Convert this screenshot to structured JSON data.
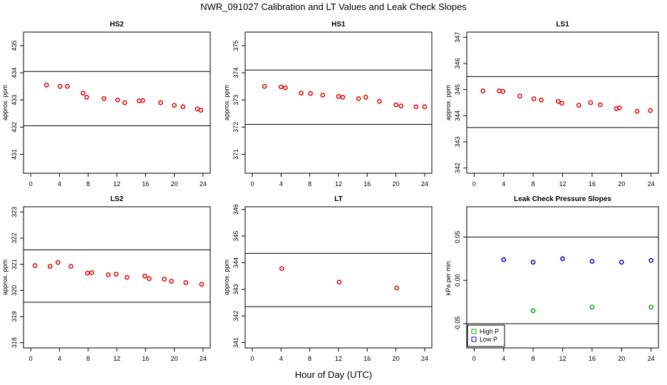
{
  "figure": {
    "title": "NWR_091027  Calibration and LT Values and Leak Check Slopes",
    "xlabel": "Hour of Day (UTC)"
  },
  "colors": {
    "red": "#e00000",
    "green": "#00b000",
    "blue": "#0000cc",
    "axis": "#000000"
  },
  "chart_data": [
    {
      "type": "scatter",
      "title": "HS2",
      "ylabel": "approx. ppm",
      "xlim": [
        -1,
        25
      ],
      "ylim": [
        430.3,
        435.5
      ],
      "xticks": [
        0,
        4,
        8,
        12,
        16,
        20,
        24
      ],
      "yticks": [
        431,
        432,
        433,
        434,
        435
      ],
      "hlines": [
        434.05,
        432.05
      ],
      "series": [
        {
          "marker": "circle",
          "color": "red",
          "points": [
            [
              2.2,
              433.55
            ],
            [
              4.1,
              433.5
            ],
            [
              5.1,
              433.5
            ],
            [
              7.3,
              433.25
            ],
            [
              7.8,
              433.1
            ],
            [
              10.2,
              433.05
            ],
            [
              12.1,
              433.0
            ],
            [
              13.1,
              432.9
            ],
            [
              15.1,
              432.97
            ],
            [
              15.6,
              432.98
            ],
            [
              18.1,
              432.9
            ],
            [
              20,
              432.8
            ],
            [
              21.2,
              432.75
            ],
            [
              23.2,
              432.67
            ],
            [
              23.7,
              432.62
            ]
          ]
        }
      ]
    },
    {
      "type": "scatter",
      "title": "HS1",
      "ylabel": "approx. ppm",
      "xlim": [
        -1,
        25
      ],
      "ylim": [
        370.3,
        375.5
      ],
      "xticks": [
        0,
        4,
        8,
        12,
        16,
        20,
        24
      ],
      "yticks": [
        371,
        372,
        373,
        374,
        375
      ],
      "hlines": [
        374.1,
        372.1
      ],
      "series": [
        {
          "marker": "circle",
          "color": "red",
          "points": [
            [
              1.7,
              373.5
            ],
            [
              4,
              373.48
            ],
            [
              4.6,
              373.45
            ],
            [
              6.8,
              373.25
            ],
            [
              8.1,
              373.24
            ],
            [
              9.8,
              373.18
            ],
            [
              12,
              373.13
            ],
            [
              12.6,
              373.1
            ],
            [
              14.8,
              373.05
            ],
            [
              15.8,
              373.1
            ],
            [
              17.7,
              372.95
            ],
            [
              20,
              372.82
            ],
            [
              20.7,
              372.78
            ],
            [
              22.8,
              372.75
            ],
            [
              24,
              372.75
            ]
          ]
        }
      ]
    },
    {
      "type": "scatter",
      "title": "LS1",
      "ylabel": "approx. ppm",
      "xlim": [
        -1,
        25
      ],
      "ylim": [
        341.8,
        347.2
      ],
      "xticks": [
        0,
        4,
        8,
        12,
        16,
        20,
        24
      ],
      "yticks": [
        342,
        343,
        344,
        345,
        346,
        347
      ],
      "hlines": [
        345.5,
        343.55
      ],
      "series": [
        {
          "marker": "circle",
          "color": "red",
          "points": [
            [
              1.2,
              344.95
            ],
            [
              3.4,
              344.95
            ],
            [
              3.9,
              344.93
            ],
            [
              6.2,
              344.75
            ],
            [
              8.1,
              344.65
            ],
            [
              9.1,
              344.6
            ],
            [
              11.4,
              344.55
            ],
            [
              11.9,
              344.48
            ],
            [
              14.2,
              344.4
            ],
            [
              15.8,
              344.5
            ],
            [
              17.1,
              344.42
            ],
            [
              19.3,
              344.27
            ],
            [
              19.7,
              344.3
            ],
            [
              22.1,
              344.17
            ],
            [
              23.9,
              344.2
            ]
          ]
        }
      ]
    },
    {
      "type": "scatter",
      "title": "LS2",
      "ylabel": "approx. ppm",
      "xlim": [
        -1,
        25
      ],
      "ylim": [
        317.8,
        323.2
      ],
      "xticks": [
        0,
        4,
        8,
        12,
        16,
        20,
        24
      ],
      "yticks": [
        318,
        319,
        320,
        321,
        322,
        323
      ],
      "hlines": [
        321.55,
        319.55
      ],
      "series": [
        {
          "marker": "circle",
          "color": "red",
          "points": [
            [
              0.6,
              320.95
            ],
            [
              2.7,
              320.92
            ],
            [
              3.8,
              321.07
            ],
            [
              5.6,
              320.92
            ],
            [
              7.9,
              320.66
            ],
            [
              8.5,
              320.68
            ],
            [
              10.8,
              320.6
            ],
            [
              11.9,
              320.62
            ],
            [
              13.4,
              320.5
            ],
            [
              15.9,
              320.55
            ],
            [
              16.5,
              320.45
            ],
            [
              18.6,
              320.43
            ],
            [
              19.6,
              320.35
            ],
            [
              21.6,
              320.3
            ],
            [
              23.8,
              320.23
            ]
          ]
        }
      ]
    },
    {
      "type": "scatter",
      "title": "LT",
      "ylabel": "approx. ppm",
      "xlim": [
        -1,
        25
      ],
      "ylim": [
        340.8,
        346.1
      ],
      "xticks": [
        0,
        4,
        8,
        12,
        16,
        20,
        24
      ],
      "yticks": [
        341,
        342,
        343,
        344,
        345,
        346
      ],
      "hlines": [
        344.35,
        342.35
      ],
      "series": [
        {
          "marker": "circle",
          "color": "red",
          "points": [
            [
              4.1,
              343.78
            ],
            [
              12.1,
              343.27
            ],
            [
              20.1,
              343.05
            ]
          ]
        }
      ]
    },
    {
      "type": "scatter",
      "title": "Leak Check Pressure Slopes",
      "ylabel": "kPa per min.",
      "xlim": [
        -1,
        25
      ],
      "ylim": [
        -0.078,
        0.085
      ],
      "xticks": [
        0,
        4,
        8,
        12,
        16,
        20,
        24
      ],
      "yticks": [
        -0.05,
        0.0,
        0.05
      ],
      "yticklabels": [
        "-0.05",
        "0.00",
        "0.05"
      ],
      "hlines": [
        0.05,
        -0.05
      ],
      "legend": {
        "position": "bottom-left",
        "entries": [
          "High P",
          "Low P"
        ]
      },
      "series": [
        {
          "name": "High P",
          "marker": "circle",
          "color": "green",
          "points": [
            [
              8,
              -0.035
            ],
            [
              16,
              -0.031
            ],
            [
              24,
              -0.031
            ]
          ]
        },
        {
          "name": "Low P",
          "marker": "circle",
          "color": "blue",
          "points": [
            [
              4,
              0.024
            ],
            [
              8,
              0.021
            ],
            [
              12,
              0.025
            ],
            [
              16,
              0.022
            ],
            [
              20,
              0.021
            ],
            [
              24,
              0.023
            ]
          ]
        }
      ]
    }
  ]
}
